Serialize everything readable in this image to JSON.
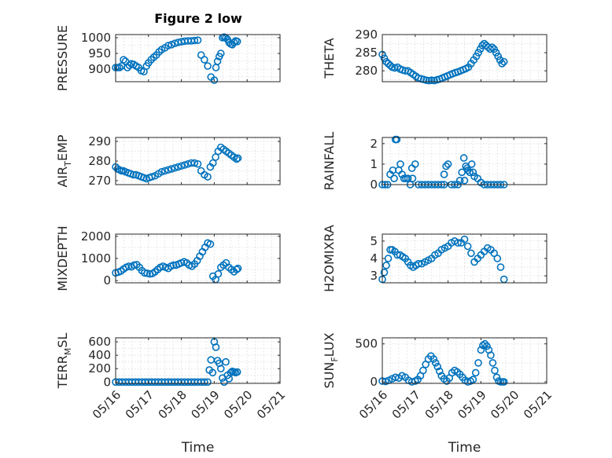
{
  "figure": {
    "title": "Figure 2 low"
  },
  "colors": {
    "marker": "#0072BD",
    "axis": "#262626",
    "grid": "#d9d9d9"
  },
  "chart_data": [
    {
      "type": "scatter",
      "title": "Figure 2 low",
      "ylabel": "PRESSURE",
      "xlabel": "",
      "xlim": [
        0,
        5
      ],
      "xticks": [
        0,
        1,
        2,
        3,
        4,
        5
      ],
      "xticklabels": [],
      "ylim": [
        860,
        1010
      ],
      "yticks": [
        900,
        950,
        1000
      ],
      "x": [
        0,
        0.06,
        0.12,
        0.18,
        0.24,
        0.3,
        0.36,
        0.42,
        0.48,
        0.55,
        0.62,
        0.7,
        0.78,
        0.86,
        0.94,
        1.0,
        1.08,
        1.16,
        1.24,
        1.32,
        1.4,
        1.5,
        1.6,
        1.7,
        1.8,
        1.9,
        2.0,
        2.1,
        2.2,
        2.3,
        2.4,
        2.5,
        2.6,
        2.7,
        2.8,
        2.9,
        3.0,
        3.05,
        3.1,
        3.15,
        3.2,
        3.25,
        3.3,
        3.35,
        3.4,
        3.45,
        3.5,
        3.55,
        3.6,
        3.65,
        3.7
      ],
      "y": [
        905,
        905,
        905,
        910,
        930,
        925,
        905,
        912,
        917,
        915,
        910,
        905,
        895,
        892,
        910,
        920,
        930,
        938,
        945,
        955,
        962,
        968,
        975,
        978,
        982,
        985,
        987,
        989,
        990,
        990,
        991,
        992,
        945,
        930,
        910,
        875,
        865,
        905,
        925,
        940,
        950,
        1000,
        1002,
        1000,
        995,
        985,
        980,
        978,
        985,
        990,
        988
      ]
    },
    {
      "type": "scatter",
      "ylabel": "THETA",
      "xlabel": "",
      "xlim": [
        0,
        5
      ],
      "xticks": [
        0,
        1,
        2,
        3,
        4,
        5
      ],
      "xticklabels": [],
      "ylim": [
        277,
        290
      ],
      "yticks": [
        280,
        285,
        290
      ],
      "x": [
        0,
        0.06,
        0.12,
        0.18,
        0.24,
        0.3,
        0.38,
        0.46,
        0.54,
        0.62,
        0.7,
        0.78,
        0.86,
        0.94,
        1.02,
        1.1,
        1.18,
        1.26,
        1.34,
        1.42,
        1.5,
        1.58,
        1.66,
        1.74,
        1.82,
        1.9,
        1.98,
        2.06,
        2.14,
        2.22,
        2.3,
        2.38,
        2.46,
        2.54,
        2.62,
        2.7,
        2.78,
        2.86,
        2.92,
        2.98,
        3.04,
        3.1,
        3.16,
        3.22,
        3.28,
        3.34,
        3.4,
        3.46,
        3.52,
        3.58,
        3.64,
        3.7
      ],
      "y": [
        284.5,
        283.5,
        282.5,
        282,
        281.5,
        281,
        280.8,
        281,
        280.5,
        280.2,
        280,
        280,
        279.5,
        279,
        278.5,
        278,
        277.8,
        277.6,
        277.4,
        277.3,
        277.4,
        277.3,
        277.5,
        277.7,
        278,
        278.3,
        278.6,
        278.9,
        279.2,
        279.5,
        279.7,
        280,
        280.3,
        280.6,
        281,
        282,
        283,
        284,
        285,
        286,
        287,
        287.5,
        287,
        286.5,
        286,
        286.5,
        286,
        285,
        284,
        283,
        282,
        282.5
      ]
    },
    {
      "type": "scatter",
      "ylabel": "AIR_TEMP",
      "xlabel": "",
      "xlim": [
        0,
        5
      ],
      "xticks": [
        0,
        1,
        2,
        3,
        4,
        5
      ],
      "xticklabels": [],
      "ylim": [
        268,
        292
      ],
      "yticks": [
        270,
        280,
        290
      ],
      "x": [
        0,
        0.06,
        0.12,
        0.18,
        0.24,
        0.3,
        0.38,
        0.46,
        0.54,
        0.62,
        0.7,
        0.78,
        0.86,
        0.94,
        1.02,
        1.1,
        1.2,
        1.3,
        1.4,
        1.5,
        1.6,
        1.7,
        1.8,
        1.9,
        2.0,
        2.1,
        2.2,
        2.3,
        2.4,
        2.5,
        2.6,
        2.7,
        2.8,
        2.88,
        2.96,
        3.04,
        3.12,
        3.2,
        3.28,
        3.36,
        3.44,
        3.52,
        3.6,
        3.68,
        3.72
      ],
      "y": [
        277,
        276,
        275.5,
        275,
        275,
        274.5,
        274,
        273.5,
        273,
        273,
        272.5,
        272,
        271.5,
        271,
        271.5,
        272,
        272.5,
        273.5,
        274.5,
        275,
        275.5,
        276,
        276.5,
        277,
        277.5,
        278,
        278.5,
        279,
        279,
        278.5,
        275,
        273,
        272,
        277,
        279,
        282,
        285,
        287,
        286,
        285,
        284,
        283,
        282,
        281,
        281.5
      ]
    },
    {
      "type": "scatter",
      "ylabel": "RAINFALL",
      "xlabel": "",
      "xlim": [
        0,
        5
      ],
      "xticks": [
        0,
        1,
        2,
        3,
        4,
        5
      ],
      "xticklabels": [],
      "ylim": [
        0,
        2.3
      ],
      "yticks": [
        0,
        1,
        2
      ],
      "x": [
        0,
        0.08,
        0.16,
        0.24,
        0.32,
        0.4,
        0.44,
        0.5,
        0.55,
        0.6,
        0.66,
        0.72,
        0.78,
        0.85,
        0.92,
        1.0,
        1.1,
        1.2,
        1.3,
        1.4,
        1.5,
        1.6,
        1.7,
        1.8,
        1.88,
        1.94,
        2.0,
        2.1,
        2.2,
        2.3,
        2.36,
        2.42,
        2.48,
        2.54,
        2.6,
        2.66,
        2.72,
        2.8,
        2.9,
        3.0,
        3.1,
        3.2,
        3.3,
        3.4,
        3.5,
        3.6,
        3.7,
        0.36,
        0.9,
        1.88,
        2.5,
        2.58,
        2.76,
        3.0
      ],
      "y": [
        0,
        0,
        0,
        0.5,
        0.7,
        2.2,
        2.2,
        0.7,
        1.0,
        0.5,
        0.3,
        0.3,
        0.3,
        0,
        0.3,
        1.0,
        0,
        0,
        0,
        0,
        0,
        0,
        0,
        0,
        0,
        0.9,
        1.0,
        0,
        0,
        0,
        0.2,
        0.6,
        1.3,
        0.9,
        0.7,
        0.6,
        1.0,
        0.4,
        0.3,
        0.1,
        0,
        0,
        0,
        0,
        0,
        0,
        0,
        0.3,
        0.8,
        0.5,
        0.2,
        0.8,
        0.6,
        0.1
      ]
    },
    {
      "type": "scatter",
      "ylabel": "MIXDEPTH",
      "xlabel": "",
      "xlim": [
        0,
        5
      ],
      "xticks": [
        0,
        1,
        2,
        3,
        4,
        5
      ],
      "xticklabels": [],
      "ylim": [
        -100,
        2100
      ],
      "yticks": [
        0,
        1000,
        2000
      ],
      "x": [
        0,
        0.08,
        0.16,
        0.24,
        0.32,
        0.4,
        0.48,
        0.56,
        0.64,
        0.72,
        0.8,
        0.88,
        0.96,
        1.04,
        1.12,
        1.2,
        1.28,
        1.36,
        1.44,
        1.52,
        1.6,
        1.68,
        1.76,
        1.84,
        1.92,
        2.0,
        2.08,
        2.16,
        2.24,
        2.32,
        2.4,
        2.48,
        2.56,
        2.64,
        2.72,
        2.8,
        2.88,
        2.96,
        3.04,
        3.12,
        3.2,
        3.28,
        3.36,
        3.44,
        3.52,
        3.6,
        3.68,
        3.72
      ],
      "y": [
        350,
        380,
        430,
        520,
        600,
        650,
        620,
        700,
        720,
        600,
        450,
        350,
        330,
        300,
        320,
        400,
        500,
        600,
        650,
        600,
        550,
        650,
        700,
        700,
        750,
        800,
        850,
        800,
        700,
        650,
        750,
        900,
        1100,
        1300,
        1500,
        1700,
        1650,
        200,
        50,
        300,
        600,
        700,
        800,
        600,
        500,
        400,
        500,
        550
      ]
    },
    {
      "type": "scatter",
      "ylabel": "H2OMIXRA",
      "xlabel": "",
      "xlim": [
        0,
        5
      ],
      "xticks": [
        0,
        1,
        2,
        3,
        4,
        5
      ],
      "xticklabels": [],
      "ylim": [
        2.6,
        5.4
      ],
      "yticks": [
        3,
        4,
        5
      ],
      "x": [
        0,
        0.06,
        0.12,
        0.18,
        0.24,
        0.3,
        0.38,
        0.46,
        0.54,
        0.62,
        0.7,
        0.78,
        0.86,
        0.94,
        1.02,
        1.1,
        1.2,
        1.3,
        1.4,
        1.5,
        1.6,
        1.7,
        1.8,
        1.9,
        2.0,
        2.1,
        2.2,
        2.3,
        2.4,
        2.5,
        2.6,
        2.7,
        2.8,
        2.9,
        3.0,
        3.1,
        3.2,
        3.3,
        3.4,
        3.5,
        3.6,
        3.7
      ],
      "y": [
        2.8,
        3.2,
        3.6,
        4.0,
        4.5,
        4.5,
        4.4,
        4.2,
        4.2,
        4.1,
        4.0,
        3.8,
        3.6,
        3.5,
        3.6,
        3.7,
        3.7,
        3.8,
        3.9,
        4.0,
        4.2,
        4.3,
        4.5,
        4.6,
        4.7,
        4.9,
        5.0,
        4.9,
        4.9,
        5.1,
        4.7,
        4.3,
        3.8,
        4.0,
        4.2,
        4.4,
        4.6,
        4.5,
        4.3,
        4.0,
        3.5,
        2.8
      ]
    },
    {
      "type": "scatter",
      "ylabel": "TERR_MSL",
      "xlabel": "Time",
      "xlim": [
        0,
        5
      ],
      "xticks": [
        0,
        1,
        2,
        3,
        4,
        5
      ],
      "xticklabels": [
        "05/16",
        "05/17",
        "05/18",
        "05/19",
        "05/20",
        "05/21"
      ],
      "ylim": [
        -20,
        660
      ],
      "yticks": [
        0,
        200,
        400,
        600
      ],
      "x": [
        0,
        0.1,
        0.2,
        0.3,
        0.4,
        0.5,
        0.6,
        0.7,
        0.8,
        0.9,
        1.0,
        1.1,
        1.2,
        1.3,
        1.4,
        1.5,
        1.6,
        1.7,
        1.8,
        1.9,
        2.0,
        2.1,
        2.2,
        2.3,
        2.4,
        2.5,
        2.6,
        2.7,
        2.8,
        2.85,
        2.9,
        2.95,
        3.0,
        3.05,
        3.1,
        3.15,
        3.2,
        3.25,
        3.3,
        3.35,
        3.4,
        3.45,
        3.5,
        3.55,
        3.6,
        3.65,
        3.7
      ],
      "y": [
        0,
        0,
        0,
        0,
        0,
        0,
        0,
        0,
        0,
        0,
        0,
        0,
        0,
        0,
        0,
        0,
        0,
        0,
        0,
        0,
        0,
        0,
        0,
        0,
        0,
        0,
        0,
        0,
        0,
        180,
        330,
        140,
        600,
        520,
        320,
        280,
        200,
        60,
        0,
        300,
        100,
        50,
        140,
        160,
        150,
        140,
        150
      ]
    },
    {
      "type": "scatter",
      "ylabel": "SUN_FLUX",
      "xlabel": "Time",
      "xlim": [
        0,
        5
      ],
      "xticks": [
        0,
        1,
        2,
        3,
        4,
        5
      ],
      "xticklabels": [
        "05/16",
        "05/17",
        "05/18",
        "05/19",
        "05/20",
        "05/21"
      ],
      "ylim": [
        -20,
        580
      ],
      "yticks": [
        0,
        500
      ],
      "x": [
        0,
        0.1,
        0.2,
        0.3,
        0.4,
        0.5,
        0.6,
        0.7,
        0.8,
        0.9,
        1.0,
        1.08,
        1.16,
        1.24,
        1.32,
        1.4,
        1.48,
        1.56,
        1.62,
        1.68,
        1.74,
        1.8,
        1.88,
        1.96,
        2.04,
        2.12,
        2.2,
        2.28,
        2.36,
        2.44,
        2.52,
        2.6,
        2.68,
        2.76,
        2.84,
        2.92,
        3.0,
        3.06,
        3.12,
        3.18,
        3.24,
        3.3,
        3.36,
        3.42,
        3.48,
        3.54,
        3.6,
        3.66,
        3.7
      ],
      "y": [
        10,
        5,
        20,
        40,
        60,
        50,
        80,
        60,
        20,
        0,
        10,
        30,
        80,
        150,
        230,
        300,
        340,
        300,
        250,
        200,
        140,
        80,
        40,
        10,
        50,
        120,
        150,
        130,
        100,
        60,
        20,
        0,
        10,
        30,
        120,
        250,
        420,
        480,
        500,
        470,
        420,
        350,
        250,
        150,
        60,
        10,
        0,
        0,
        0
      ]
    }
  ]
}
